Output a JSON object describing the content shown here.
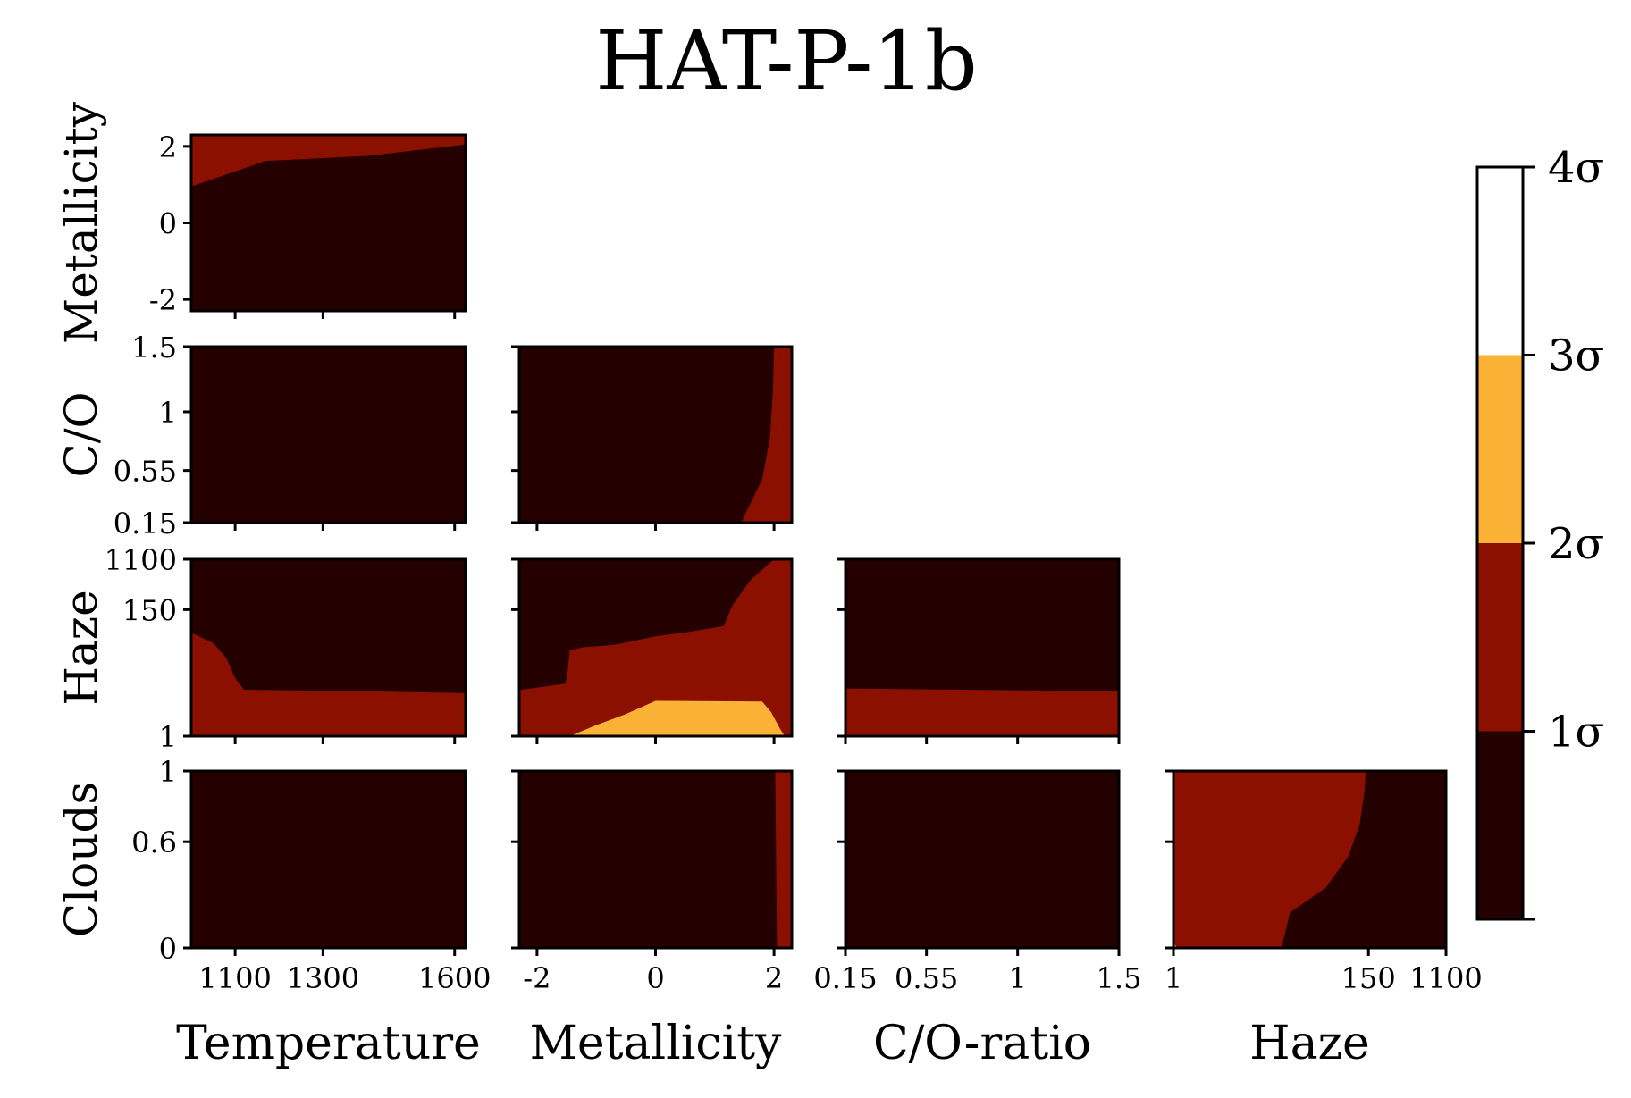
{
  "chart_data": {
    "type": "heatmap",
    "title": "HAT-P-1b",
    "colors": {
      "background": "#250000",
      "sigma1": "#8b1000",
      "sigma2": "#fbb136",
      "sigma3": "#ffffff"
    },
    "colorbar": {
      "tick_labels": [
        "1σ",
        "2σ",
        "3σ",
        "4σ"
      ],
      "bands": [
        {
          "from": 0,
          "to": 1,
          "color": "#250000"
        },
        {
          "from": 1,
          "to": 2,
          "color": "#8b1000"
        },
        {
          "from": 2,
          "to": 3,
          "color": "#fbb136"
        },
        {
          "from": 3,
          "to": 4,
          "color": "#ffffff"
        }
      ]
    },
    "parameters": [
      {
        "key": "temp",
        "label": "Temperature",
        "range": [
          1000,
          1625
        ],
        "scale": "linear",
        "ticks": [
          {
            "v": 1100,
            "t": "1100"
          },
          {
            "v": 1300,
            "t": "1300"
          },
          {
            "v": 1600,
            "t": "1600"
          }
        ]
      },
      {
        "key": "met",
        "label": "Metallicity",
        "range": [
          -2.3,
          2.3
        ],
        "scale": "linear",
        "ticks": [
          {
            "v": -2,
            "t": "-2"
          },
          {
            "v": 0,
            "t": "0"
          },
          {
            "v": 2,
            "t": "2"
          }
        ]
      },
      {
        "key": "co",
        "label": "C/O-ratio",
        "short_label": "C/O",
        "range": [
          0.15,
          1.5
        ],
        "scale": "linear",
        "ticks": [
          {
            "v": 0.15,
            "t": "0.15"
          },
          {
            "v": 0.55,
            "t": "0.55"
          },
          {
            "v": 1,
            "t": "1"
          },
          {
            "v": 1.5,
            "t": "1.5"
          }
        ]
      },
      {
        "key": "haze",
        "label": "Haze",
        "range": [
          1,
          1100
        ],
        "scale": "log",
        "ticks": [
          {
            "v": 1,
            "t": "1"
          },
          {
            "v": 150,
            "t": "150"
          },
          {
            "v": 1100,
            "t": "1100"
          }
        ]
      },
      {
        "key": "clouds",
        "label": "Clouds",
        "range": [
          0,
          1
        ],
        "scale": "linear",
        "ticks": [
          {
            "v": 0,
            "t": "0"
          },
          {
            "v": 0.6,
            "t": "0.6"
          },
          {
            "v": 1,
            "t": "1"
          }
        ]
      }
    ],
    "panels": [
      {
        "row": "met",
        "col": "temp",
        "regions": [
          {
            "level": 1,
            "points": [
              [
                1000,
                0.95
              ],
              [
                1170,
                1.62
              ],
              [
                1400,
                1.75
              ],
              [
                1625,
                2.05
              ],
              [
                1625,
                2.3
              ],
              [
                1000,
                2.3
              ]
            ]
          }
        ]
      },
      {
        "row": "co",
        "col": "temp",
        "regions": []
      },
      {
        "row": "co",
        "col": "met",
        "regions": [
          {
            "level": 1,
            "points": [
              [
                1.45,
                0.15
              ],
              [
                1.55,
                0.25
              ],
              [
                1.8,
                0.48
              ],
              [
                1.93,
                0.8
              ],
              [
                1.98,
                1.15
              ],
              [
                2.0,
                1.5
              ],
              [
                2.3,
                1.5
              ],
              [
                2.3,
                0.15
              ]
            ]
          }
        ]
      },
      {
        "row": "haze",
        "col": "temp",
        "regions": [
          {
            "level": 1,
            "points": [
              [
                1000,
                1
              ],
              [
                1625,
                1
              ],
              [
                1625,
                5.5
              ],
              [
                1400,
                5.9
              ],
              [
                1120,
                6.3
              ],
              [
                1100,
                10
              ],
              [
                1080,
                22
              ],
              [
                1050,
                40
              ],
              [
                1000,
                60
              ]
            ]
          }
        ]
      },
      {
        "row": "haze",
        "col": "met",
        "regions": [
          {
            "level": 1,
            "points": [
              [
                -2.3,
                1
              ],
              [
                2.3,
                1
              ],
              [
                2.3,
                1100
              ],
              [
                2.0,
                1100
              ],
              [
                1.6,
                480
              ],
              [
                1.3,
                180
              ],
              [
                1.15,
                78
              ],
              [
                0.6,
                63
              ],
              [
                0.0,
                52
              ],
              [
                -0.7,
                37
              ],
              [
                -1.2,
                34
              ],
              [
                -1.45,
                30
              ],
              [
                -1.48,
                14
              ],
              [
                -1.52,
                8
              ],
              [
                -2.3,
                6.2
              ]
            ]
          },
          {
            "level": 2,
            "points": [
              [
                -1.45,
                1
              ],
              [
                -1.0,
                1.55
              ],
              [
                -0.5,
                2.4
              ],
              [
                0.0,
                4.05
              ],
              [
                1.8,
                3.95
              ],
              [
                1.95,
                2.6
              ],
              [
                2.1,
                1.35
              ],
              [
                2.18,
                1
              ]
            ]
          }
        ]
      },
      {
        "row": "haze",
        "col": "co",
        "regions": [
          {
            "level": 1,
            "points": [
              [
                0.15,
                1
              ],
              [
                1.5,
                1
              ],
              [
                1.5,
                5.9
              ],
              [
                0.9,
                6.2
              ],
              [
                0.15,
                6.6
              ]
            ]
          }
        ]
      },
      {
        "row": "clouds",
        "col": "temp",
        "regions": []
      },
      {
        "row": "clouds",
        "col": "met",
        "regions": [
          {
            "level": 1,
            "points": [
              [
                2.05,
                0
              ],
              [
                2.3,
                0
              ],
              [
                2.3,
                1
              ],
              [
                2.02,
                1
              ]
            ]
          }
        ]
      },
      {
        "row": "clouds",
        "col": "co",
        "regions": []
      },
      {
        "row": "clouds",
        "col": "haze",
        "regions": [
          {
            "level": 1,
            "points": [
              [
                1,
                0
              ],
              [
                16,
                0
              ],
              [
                20,
                0.2
              ],
              [
                50,
                0.34
              ],
              [
                90,
                0.52
              ],
              [
                120,
                0.7
              ],
              [
                135,
                0.88
              ],
              [
                140,
                1
              ],
              [
                1,
                1
              ]
            ]
          },
          {
            "level": 2,
            "points": [
              [
                1,
                0
              ],
              [
                1.1,
                0
              ],
              [
                1,
                0.03
              ]
            ]
          }
        ]
      }
    ]
  }
}
